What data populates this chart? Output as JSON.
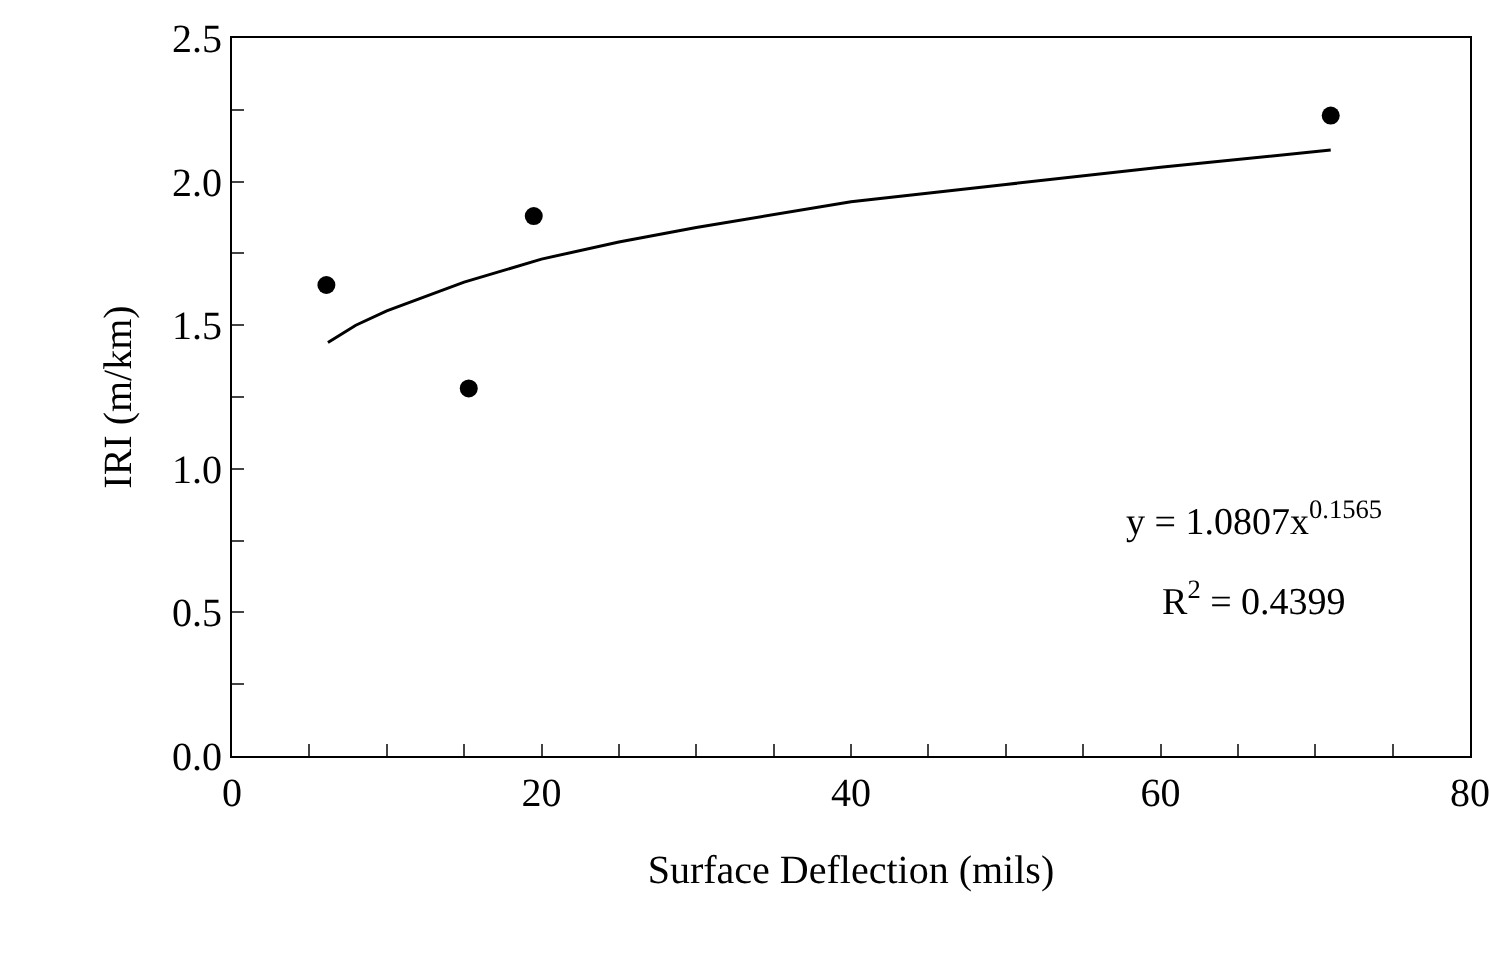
{
  "chart_data": {
    "type": "scatter",
    "xlabel": "Surface Deflection (mils)",
    "ylabel": "IRI (m/km)",
    "series": [
      {
        "color": "#000000",
        "marker": "circle",
        "x": [
          6.1,
          15.3,
          19.5,
          71
        ],
        "values": [
          1.64,
          1.28,
          1.88,
          2.23
        ]
      },
      {
        "type": "line",
        "color": "#000000",
        "marker": "none",
        "line_style": "solid",
        "x": [
          6.2,
          8,
          10,
          15,
          20,
          25,
          30,
          40,
          50,
          60,
          71
        ],
        "values": [
          1.44,
          1.5,
          1.55,
          1.65,
          1.73,
          1.79,
          1.84,
          1.93,
          1.99,
          2.05,
          2.11
        ]
      }
    ],
    "xlim": [
      0,
      80
    ],
    "xticks": [
      0,
      {
        "value": 5,
        "label": null
      },
      {
        "value": 10,
        "label": null
      },
      {
        "value": 15,
        "label": null
      },
      20,
      {
        "value": 25,
        "label": null
      },
      {
        "value": 30,
        "label": null
      },
      {
        "value": 35,
        "label": null
      },
      40,
      {
        "value": 45,
        "label": null
      },
      {
        "value": 50,
        "label": null
      },
      {
        "value": 55,
        "label": null
      },
      60,
      {
        "value": 65,
        "label": null
      },
      {
        "value": 70,
        "label": null
      },
      {
        "value": 75,
        "label": null
      },
      80
    ],
    "ylim": [
      0,
      2.5
    ],
    "yticks": [
      {
        "value": 0,
        "label": "0.0"
      },
      {
        "value": 0.25,
        "label": null
      },
      {
        "value": 0.5,
        "label": "0.5"
      },
      {
        "value": 0.75,
        "label": null
      },
      {
        "value": 1,
        "label": "1.0"
      },
      {
        "value": 1.25,
        "label": null
      },
      {
        "value": 1.5,
        "label": "1.5"
      },
      {
        "value": 1.75,
        "label": null
      },
      {
        "value": 2,
        "label": "2.0"
      },
      {
        "value": 2.25,
        "label": null
      },
      {
        "value": 2.5,
        "label": "2.5"
      }
    ],
    "grid": false,
    "annotations": [
      "y = 1.0807x$^{0.1565}$",
      "R$^{2}$ = 0.4399"
    ]
  }
}
